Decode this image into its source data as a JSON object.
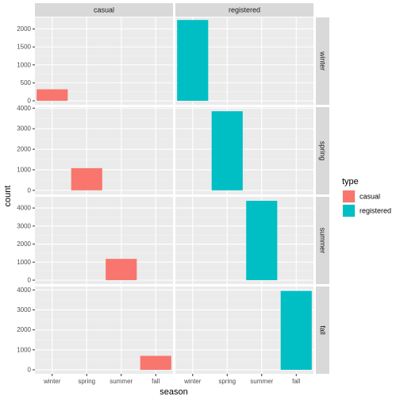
{
  "chart_data": {
    "type": "bar",
    "layout": "facet_grid",
    "xlabel": "season",
    "ylabel": "count",
    "categories": [
      "winter",
      "spring",
      "summer",
      "fall"
    ],
    "facet_cols": [
      "casual",
      "registered"
    ],
    "facet_rows": [
      "winter",
      "spring",
      "summer",
      "fall"
    ],
    "legend": {
      "title": "type",
      "position": "right",
      "entries": [
        {
          "label": "casual",
          "color": "#F8766D"
        },
        {
          "label": "registered",
          "color": "#00BFC4"
        }
      ]
    },
    "rows": [
      {
        "name": "winter",
        "ylim": [
          -110,
          2320
        ],
        "yticks": [
          0,
          500,
          1000,
          1500,
          2000
        ],
        "ytick_labels": [
          "0",
          "500",
          "1000",
          "1500",
          "2000"
        ],
        "values": {
          "casual": 320,
          "registered": 2250
        }
      },
      {
        "name": "spring",
        "ylim": [
          -200,
          4050
        ],
        "yticks": [
          0,
          1000,
          2000,
          3000,
          4000
        ],
        "ytick_labels": [
          "0",
          "1000",
          "2000",
          "3000",
          "4000"
        ],
        "values": {
          "casual": 1080,
          "registered": 3850
        }
      },
      {
        "name": "summer",
        "ylim": [
          -220,
          4620
        ],
        "yticks": [
          0,
          1000,
          2000,
          3000,
          4000
        ],
        "ytick_labels": [
          "0",
          "1000",
          "2000",
          "3000",
          "4000"
        ],
        "values": {
          "casual": 1180,
          "registered": 4400
        }
      },
      {
        "name": "fall",
        "ylim": [
          -200,
          4170
        ],
        "yticks": [
          0,
          1000,
          2000,
          3000,
          4000
        ],
        "ytick_labels": [
          "0",
          "1000",
          "2000",
          "3000",
          "4000"
        ],
        "values": {
          "casual": 700,
          "registered": 3950
        }
      }
    ],
    "grid": true
  }
}
